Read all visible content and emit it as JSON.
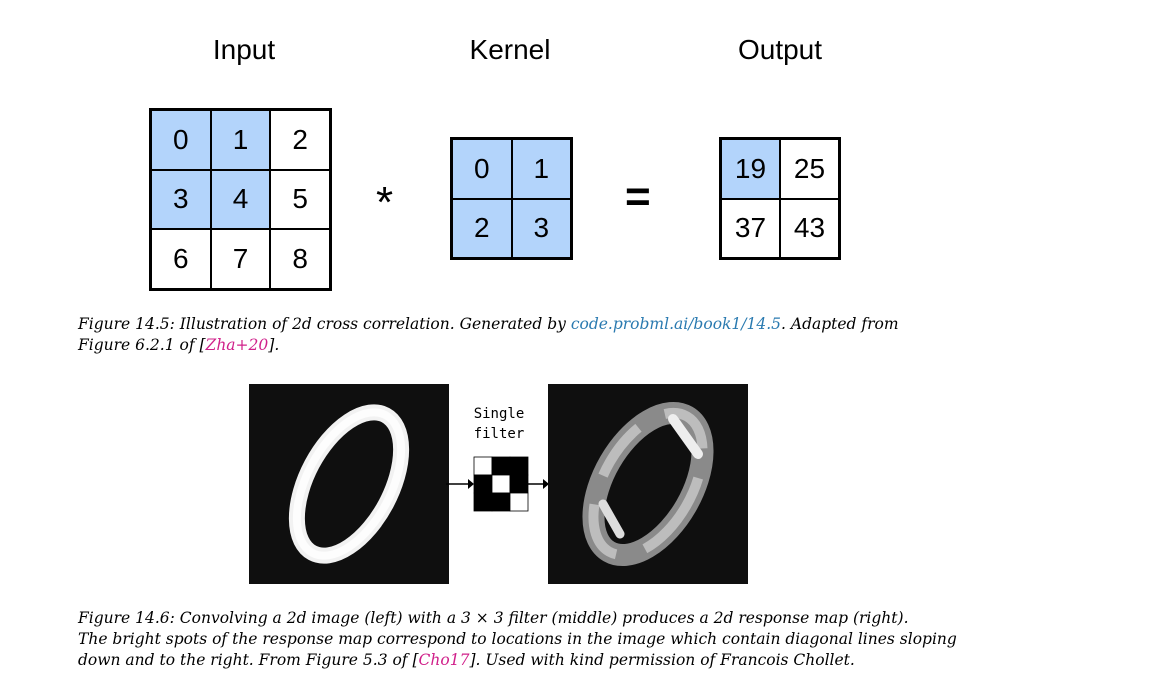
{
  "figure_14_5": {
    "input": {
      "title": "Input",
      "cells": [
        "0",
        "1",
        "2",
        "3",
        "4",
        "5",
        "6",
        "7",
        "8"
      ],
      "highlighted": [
        true,
        true,
        false,
        true,
        true,
        false,
        false,
        false,
        false
      ]
    },
    "operator": "*",
    "kernel": {
      "title": "Kernel",
      "cells": [
        "0",
        "1",
        "2",
        "3"
      ],
      "highlighted": [
        true,
        true,
        true,
        true
      ]
    },
    "equals": "=",
    "output": {
      "title": "Output",
      "cells": [
        "19",
        "25",
        "37",
        "43"
      ],
      "highlighted": [
        true,
        false,
        false,
        false
      ]
    },
    "caption": {
      "prefix": "Figure 14.5: Illustration of 2d cross correlation. Generated by ",
      "link1": "code.probml.ai/book1/14.5",
      "mid": ". Adapted from",
      "line2_prefix": "Figure 6.2.1 of [",
      "link2": "Zha+20",
      "line2_suffix": "]."
    }
  },
  "figure_14_6": {
    "filter_label_line1": "Single",
    "filter_label_line2": "filter",
    "filter_pattern": [
      1,
      0,
      0,
      0,
      1,
      0,
      0,
      0,
      1
    ],
    "caption": {
      "line1": "Figure 14.6: Convolving a 2d image (left) with a 3 × 3 filter (middle) produces a 2d response map (right).",
      "line2": "The bright spots of the response map correspond to locations in the image which contain diagonal lines sloping",
      "line3_prefix": "down and to the right. From Figure 5.3 of [",
      "link": "Cho17",
      "line3_suffix": "]. Used with kind permission of Francois Chollet."
    }
  },
  "colors": {
    "highlight": "#b3d4fb",
    "link_blue": "#2a7ab0",
    "link_magenta": "#d0208a",
    "image_background": "#0f0f0f"
  }
}
